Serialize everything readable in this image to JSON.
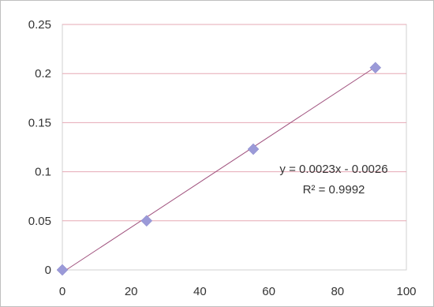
{
  "chart_data": {
    "type": "scatter",
    "title": "",
    "xlabel": "",
    "ylabel": "",
    "xlim": [
      0,
      100
    ],
    "ylim": [
      0,
      0.25
    ],
    "x_ticks": [
      0,
      20,
      40,
      60,
      80,
      100
    ],
    "y_ticks": [
      0,
      0.05,
      0.1,
      0.15,
      0.2,
      0.25
    ],
    "x_tick_labels": [
      "0",
      "20",
      "40",
      "60",
      "80",
      "100"
    ],
    "y_tick_labels": [
      "0",
      "0.05",
      "0.1",
      "0.15",
      "0.2",
      "0.25"
    ],
    "grid": "horizontal",
    "legend": "none",
    "series": [
      {
        "marker": "diamond",
        "color": "#9b9ad8",
        "points": [
          {
            "x": 0,
            "y": 0
          },
          {
            "x": 24.5,
            "y": 0.05
          },
          {
            "x": 55.5,
            "y": 0.123
          },
          {
            "x": 91,
            "y": 0.206
          }
        ]
      }
    ],
    "trendline": {
      "type": "linear",
      "slope": 0.0023,
      "intercept": -0.0026,
      "color": "#a0527e",
      "equation_label": "y = 0.0023x - 0.0026",
      "r2_label": "R² = 0.9992"
    }
  }
}
